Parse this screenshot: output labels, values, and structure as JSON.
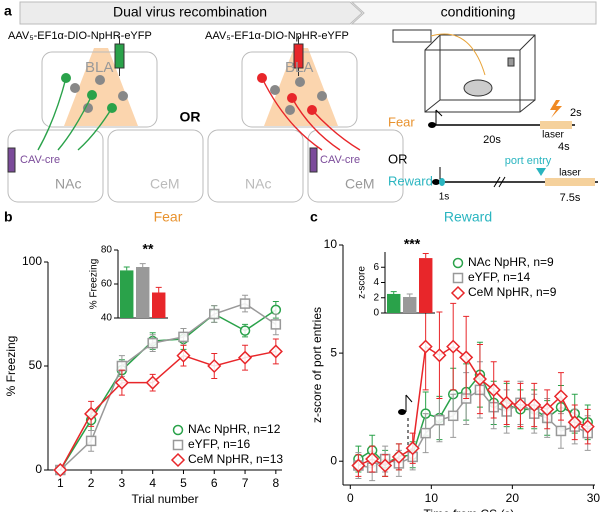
{
  "diagram": {
    "panel": "a",
    "steps": [
      "Dual virus recombination",
      "conditioning"
    ],
    "virus": [
      "AAV₅-EF1α-DIO-NpHR-eYFP",
      "AAV₅-EF1α-DIO-NpHR-eYFP"
    ],
    "injections": [
      {
        "target": "BLA",
        "cre": "CAV-cre",
        "regions": [
          "NAc",
          "CeM"
        ]
      },
      {
        "target": "BLA",
        "cre": "CAV-cre",
        "regions": [
          "NAc",
          "CeM"
        ]
      }
    ],
    "or": "OR",
    "fear": {
      "label": "Fear",
      "cs": "20s",
      "laser": "laser",
      "pulse": "2s",
      "laser_duration": "4s"
    },
    "conditioning_or": "OR",
    "reward": {
      "label": "Reward",
      "cue": "port entry",
      "delay": "1s",
      "laser": "laser",
      "laser_duration": "7.5s"
    }
  },
  "chart_data": [
    {
      "type": "line",
      "panel": "b",
      "title": "Fear",
      "title_color": "#e8922e",
      "xlabel": "Trial number",
      "ylabel": "% Freezing",
      "x": [
        1,
        2,
        3,
        4,
        5,
        6,
        7,
        8
      ],
      "xlim": [
        0.6,
        8.2
      ],
      "xticks": [
        1,
        2,
        3,
        4,
        5,
        6,
        7,
        8
      ],
      "ylim": [
        0,
        100
      ],
      "yticks": [
        0,
        50,
        100
      ],
      "series": [
        {
          "name": "NAc NpHR, n=12",
          "color": "#2aa24a",
          "marker": "circle",
          "values": [
            0,
            24,
            48,
            62,
            63,
            75,
            67,
            77
          ],
          "errors": [
            0,
            5,
            5,
            4,
            5,
            4,
            3,
            4
          ]
        },
        {
          "name": "eYFP, n=16",
          "color": "#999999",
          "marker": "square",
          "values": [
            0,
            14,
            50,
            61,
            64,
            75,
            80,
            70
          ],
          "errors": [
            0,
            5,
            5,
            4,
            4,
            4,
            4,
            5
          ]
        },
        {
          "name": "CeM NpHR, n=13",
          "color": "#e8262a",
          "marker": "diamond",
          "values": [
            0,
            27,
            42,
            42,
            55,
            50,
            54,
            57
          ],
          "errors": [
            0,
            6,
            6,
            4,
            5,
            6,
            6,
            6
          ]
        }
      ]
    },
    {
      "type": "bar",
      "ylabel": "% Freezing",
      "categories": [
        null,
        null,
        null
      ],
      "values": [
        68,
        70,
        55
      ],
      "errors": [
        2,
        2,
        3
      ],
      "colors": [
        "#2aa24a",
        "#999999",
        "#e8262a"
      ],
      "ylim": [
        40,
        80
      ],
      "yticks": [
        40,
        60,
        80
      ],
      "annotation": "**"
    },
    {
      "type": "line",
      "panel": "c",
      "title": "Reward",
      "title_color": "#2ab5c0",
      "xlabel": "Time from CS (s)",
      "ylabel": "z-score of port entries",
      "x": [
        1,
        2.7,
        4.3,
        6,
        7.7,
        9.3,
        11,
        12.7,
        14.3,
        16,
        17.7,
        19.3,
        21,
        22.7,
        24.3,
        26,
        27.7,
        29.3
      ],
      "xlim": [
        -0.9,
        30.2
      ],
      "xticks": [
        0,
        10,
        20,
        30
      ],
      "ylim": [
        -1.1,
        10
      ],
      "yticks": [
        0,
        5,
        10
      ],
      "series": [
        {
          "name": "NAc NpHR, n=9",
          "color": "#2aa24a",
          "marker": "circle",
          "values": [
            0.1,
            0.5,
            -0.1,
            0.2,
            0.3,
            2.2,
            2.0,
            3.1,
            3.2,
            4.0,
            2.7,
            2.6,
            2.4,
            2.4,
            2.0,
            2.5,
            2.2,
            1.8
          ],
          "errors": [
            0.6,
            0.7,
            0.6,
            0.6,
            0.6,
            1.0,
            1.0,
            1.2,
            1.3,
            1.5,
            1.0,
            1.0,
            0.9,
            0.9,
            0.8,
            1.0,
            0.9,
            0.8
          ]
        },
        {
          "name": "eYFP, n=14",
          "color": "#999999",
          "marker": "square",
          "values": [
            -0.2,
            -0.3,
            0.1,
            -0.1,
            0.2,
            1.3,
            1.9,
            2.1,
            2.9,
            3.3,
            2.5,
            2.3,
            2.7,
            2.2,
            2.0,
            1.4,
            1.6,
            1.3
          ],
          "errors": [
            0.6,
            0.6,
            0.6,
            0.6,
            0.6,
            0.9,
            1.0,
            1.0,
            1.2,
            1.3,
            1.0,
            1.0,
            1.0,
            0.9,
            0.9,
            0.8,
            0.8,
            0.8
          ]
        },
        {
          "name": "CeM NpHR, n=9",
          "color": "#e8262a",
          "marker": "diamond",
          "values": [
            -0.2,
            0.1,
            -0.2,
            0.2,
            0.6,
            5.3,
            4.9,
            5.3,
            4.8,
            3.8,
            3.3,
            2.7,
            2.6,
            2.6,
            2.4,
            3.0,
            1.8,
            1.6
          ],
          "errors": [
            0.5,
            0.6,
            0.5,
            0.6,
            0.7,
            2.0,
            2.0,
            2.0,
            1.9,
            1.6,
            1.3,
            1.0,
            1.0,
            1.0,
            0.9,
            1.1,
            0.8,
            0.8
          ]
        }
      ]
    },
    {
      "type": "bar",
      "ylabel": "z-score",
      "categories": [
        null,
        null,
        null
      ],
      "values": [
        2.5,
        2.1,
        7.2
      ],
      "errors": [
        0.3,
        0.4,
        0.6
      ],
      "colors": [
        "#2aa24a",
        "#999999",
        "#e8262a"
      ],
      "ylim": [
        0,
        8
      ],
      "yticks": [
        0,
        2,
        4,
        6
      ],
      "annotation": "***"
    }
  ]
}
